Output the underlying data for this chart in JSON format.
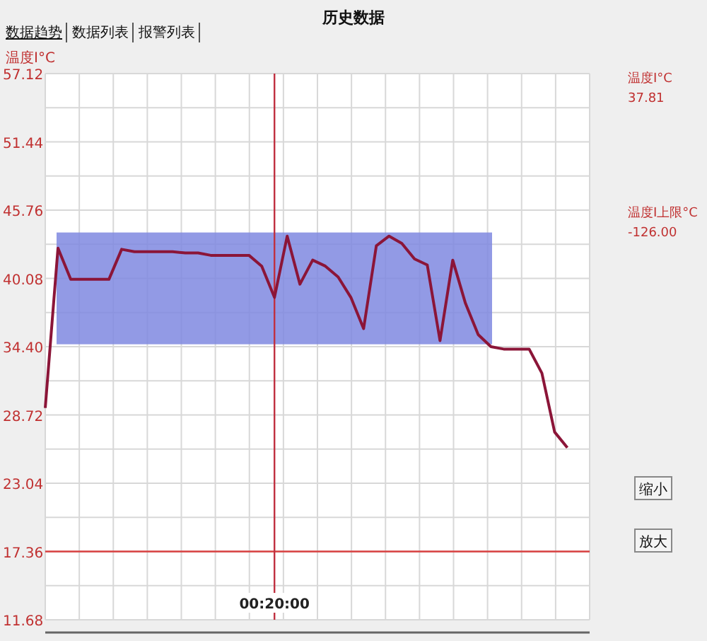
{
  "chart_data": {
    "type": "line",
    "title": "历史数据",
    "ylabel": "温度I°C",
    "categories": [
      null,
      null,
      null,
      null,
      null,
      null,
      null,
      null,
      null,
      null,
      null,
      null,
      null,
      null,
      null,
      null,
      null,
      null,
      "00:20:00",
      null,
      null,
      null,
      null,
      null,
      null,
      null,
      null,
      null,
      null,
      null,
      null,
      null,
      null,
      null,
      null,
      null,
      null,
      null,
      null,
      null,
      null,
      null
    ],
    "series": [
      {
        "color": "#8b1538",
        "values": [
          29.3,
          42.6,
          40.0,
          40.0,
          40.0,
          40.0,
          42.5,
          42.3,
          42.3,
          42.3,
          42.3,
          42.2,
          42.2,
          42.0,
          42.0,
          42.0,
          42.0,
          41.1,
          38.5,
          43.6,
          39.6,
          41.6,
          41.1,
          40.2,
          38.5,
          35.9,
          42.8,
          43.6,
          43.0,
          41.7,
          41.2,
          34.9,
          41.6,
          38.0,
          35.4,
          34.4,
          34.2,
          34.2,
          34.2,
          32.2,
          27.3,
          26.0
        ]
      }
    ],
    "ylim": [
      11.68,
      57.12
    ],
    "yticks": [
      11.68,
      17.36,
      23.04,
      28.72,
      {
        "value": 34.4,
        "label": "34.40"
      },
      40.08,
      45.76,
      51.44,
      57.12
    ],
    "grid": true,
    "marker": "none",
    "line_style": "solid",
    "ref_lines": [
      {
        "axis": "y",
        "value": 17.36,
        "color": "#d94040"
      },
      {
        "axis": "x",
        "value": "00:20:00",
        "color": "#c03040"
      }
    ],
    "bands": [
      {
        "axis": "y",
        "from": 34.6,
        "to": 43.9,
        "color": "#7f88e0"
      }
    ],
    "annotations": [
      "数据趋势",
      "数据列表",
      "报警列表",
      "温度I°C",
      "37.81",
      "温度I上限°C",
      "-126.00",
      "缩小",
      "放大"
    ]
  }
}
